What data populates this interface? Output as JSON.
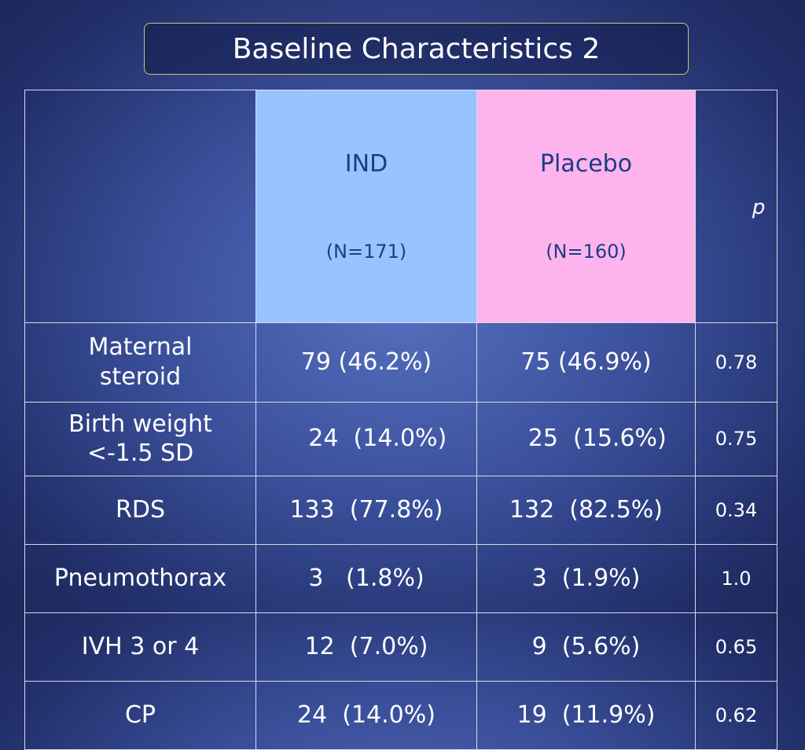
{
  "title": "Baseline Characteristics 2",
  "header": {
    "corner": "",
    "group1": {
      "name": "IND",
      "n": "(N=171)"
    },
    "group2": {
      "name": "Placebo",
      "n": "(N=160)"
    },
    "p": "p"
  },
  "rows": [
    {
      "label": "Maternal steroid",
      "ind": "79 (46.2%)",
      "placebo": "75 (46.9%)",
      "p": "0.78"
    },
    {
      "label": "Birth weight <-1.5 SD",
      "ind": "   24  (14.0%)",
      "placebo": "   25  (15.6%)",
      "p": "0.75"
    },
    {
      "label": "RDS",
      "ind": "133  (77.8%)",
      "placebo": "132  (82.5%)",
      "p": "0.34"
    },
    {
      "label": "Pneumothorax",
      "ind": "3   (1.8%)",
      "placebo": "3  (1.9%)",
      "p": "1.0"
    },
    {
      "label": "IVH 3 or 4",
      "ind": "12  (7.0%)",
      "placebo": "9  (5.6%)",
      "p": "0.65"
    },
    {
      "label": "CP",
      "ind": "24  (14.0%)",
      "placebo": "19  (11.9%)",
      "p": "0.62"
    }
  ],
  "colors": {
    "ind_header": "#99c3ff",
    "placebo_header": "#fdb4ec",
    "header_text": "#1a3e86",
    "title_border": "#c9c86a"
  }
}
